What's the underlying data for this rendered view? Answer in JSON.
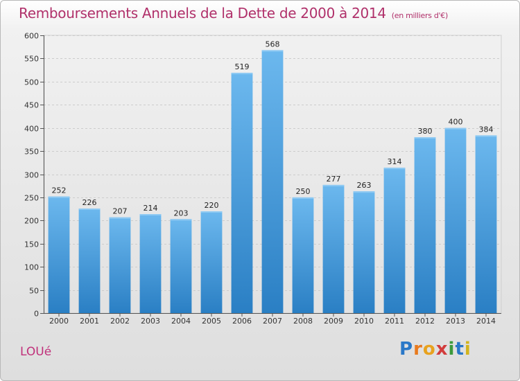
{
  "chart_data": {
    "type": "bar",
    "title": "Remboursements Annuels de la Dette de 2000 à 2014",
    "subtitle": "(en milliers d'€)",
    "categories": [
      "2000",
      "2001",
      "2002",
      "2003",
      "2004",
      "2005",
      "2006",
      "2007",
      "2008",
      "2009",
      "2010",
      "2011",
      "2012",
      "2013",
      "2014"
    ],
    "values": [
      252,
      226,
      207,
      214,
      203,
      220,
      519,
      568,
      250,
      277,
      263,
      314,
      380,
      400,
      384
    ],
    "ylim": [
      0,
      600
    ],
    "yticks": [
      0,
      50,
      100,
      150,
      200,
      250,
      300,
      350,
      400,
      450,
      500,
      550,
      600
    ],
    "grid": true,
    "bar_color_light": "#6cb8ee",
    "bar_color_dark": "#2a7fc4"
  },
  "footer": {
    "commune": "LOUé",
    "logo_letters": [
      "P",
      "r",
      "o",
      "x",
      "i",
      "t",
      "i"
    ],
    "logo_colors": [
      "#2a78c8",
      "#e87a1e",
      "#e8a21e",
      "#d23c3c",
      "#3c9a3c",
      "#2a78c8",
      "#d2b41e"
    ]
  }
}
